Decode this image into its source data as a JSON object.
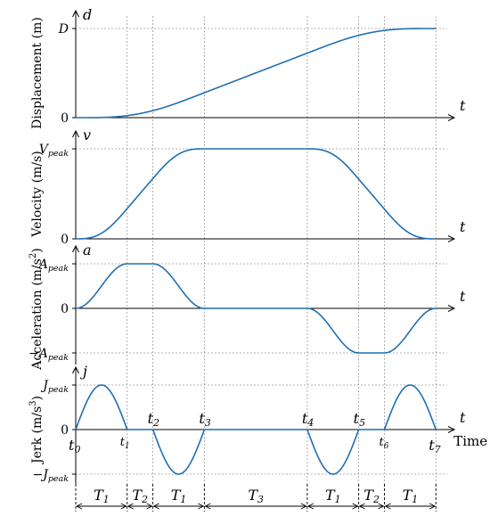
{
  "chart_data": {
    "type": "line",
    "time_axis": {
      "label": "Time",
      "ticks": [
        "t0",
        "t1",
        "t2",
        "t3",
        "t4",
        "t5",
        "t6",
        "t7"
      ],
      "tick_positions": [
        0,
        1,
        1.5,
        2.5,
        4.5,
        5.5,
        6,
        7
      ]
    },
    "intervals": [
      "T1",
      "T2",
      "T1",
      "T3",
      "T1",
      "T2",
      "T1"
    ],
    "colors": {
      "curve": "#1f6fb2",
      "grid": "#9a9a9a",
      "axis": "#000000"
    },
    "panels": [
      {
        "key": "d",
        "name": "Displacement",
        "ylabel": "Displacement (m)",
        "var_label": "d",
        "tlabel": "t",
        "ymin": 0,
        "ymax": 1,
        "yticks": [
          {
            "v": 1,
            "label": "D"
          },
          {
            "v": 0,
            "label": "0"
          }
        ]
      },
      {
        "key": "v",
        "name": "Velocity",
        "ylabel": "Velocity (m/s)",
        "var_label": "v",
        "tlabel": "t",
        "ymin": 0,
        "ymax": 1,
        "yticks": [
          {
            "v": 1,
            "label": "V",
            "sub": "peak"
          },
          {
            "v": 0,
            "label": "0"
          }
        ]
      },
      {
        "key": "a",
        "name": "Acceleration",
        "ylabel": "Acceleration (m/s",
        "ylabel_sup": "2",
        "ylabel_end": ")",
        "var_label": "a",
        "tlabel": "t",
        "ymin": -1,
        "ymax": 1,
        "yticks": [
          {
            "v": 1,
            "label": "A",
            "sub": "peak"
          },
          {
            "v": 0,
            "label": "0"
          },
          {
            "v": -1,
            "label": "−A",
            "sub": "peak"
          }
        ]
      },
      {
        "key": "j",
        "name": "Jerk",
        "ylabel": "Jerk (m/s",
        "ylabel_sup": "3",
        "ylabel_end": ")",
        "var_label": "j",
        "tlabel": "t",
        "ymin": -1,
        "ymax": 1,
        "yticks": [
          {
            "v": 1,
            "label": "J",
            "sub": "peak"
          },
          {
            "v": 0,
            "label": "0"
          },
          {
            "v": -1,
            "label": "−J",
            "sub": "peak"
          }
        ]
      }
    ],
    "jerk_profile": [
      {
        "from": 0,
        "to": 1,
        "sign": 1
      },
      {
        "from": 1.5,
        "to": 2.5,
        "sign": -1
      },
      {
        "from": 4.5,
        "to": 5.5,
        "sign": -1
      },
      {
        "from": 6,
        "to": 7,
        "sign": 1
      }
    ],
    "grid": true
  }
}
